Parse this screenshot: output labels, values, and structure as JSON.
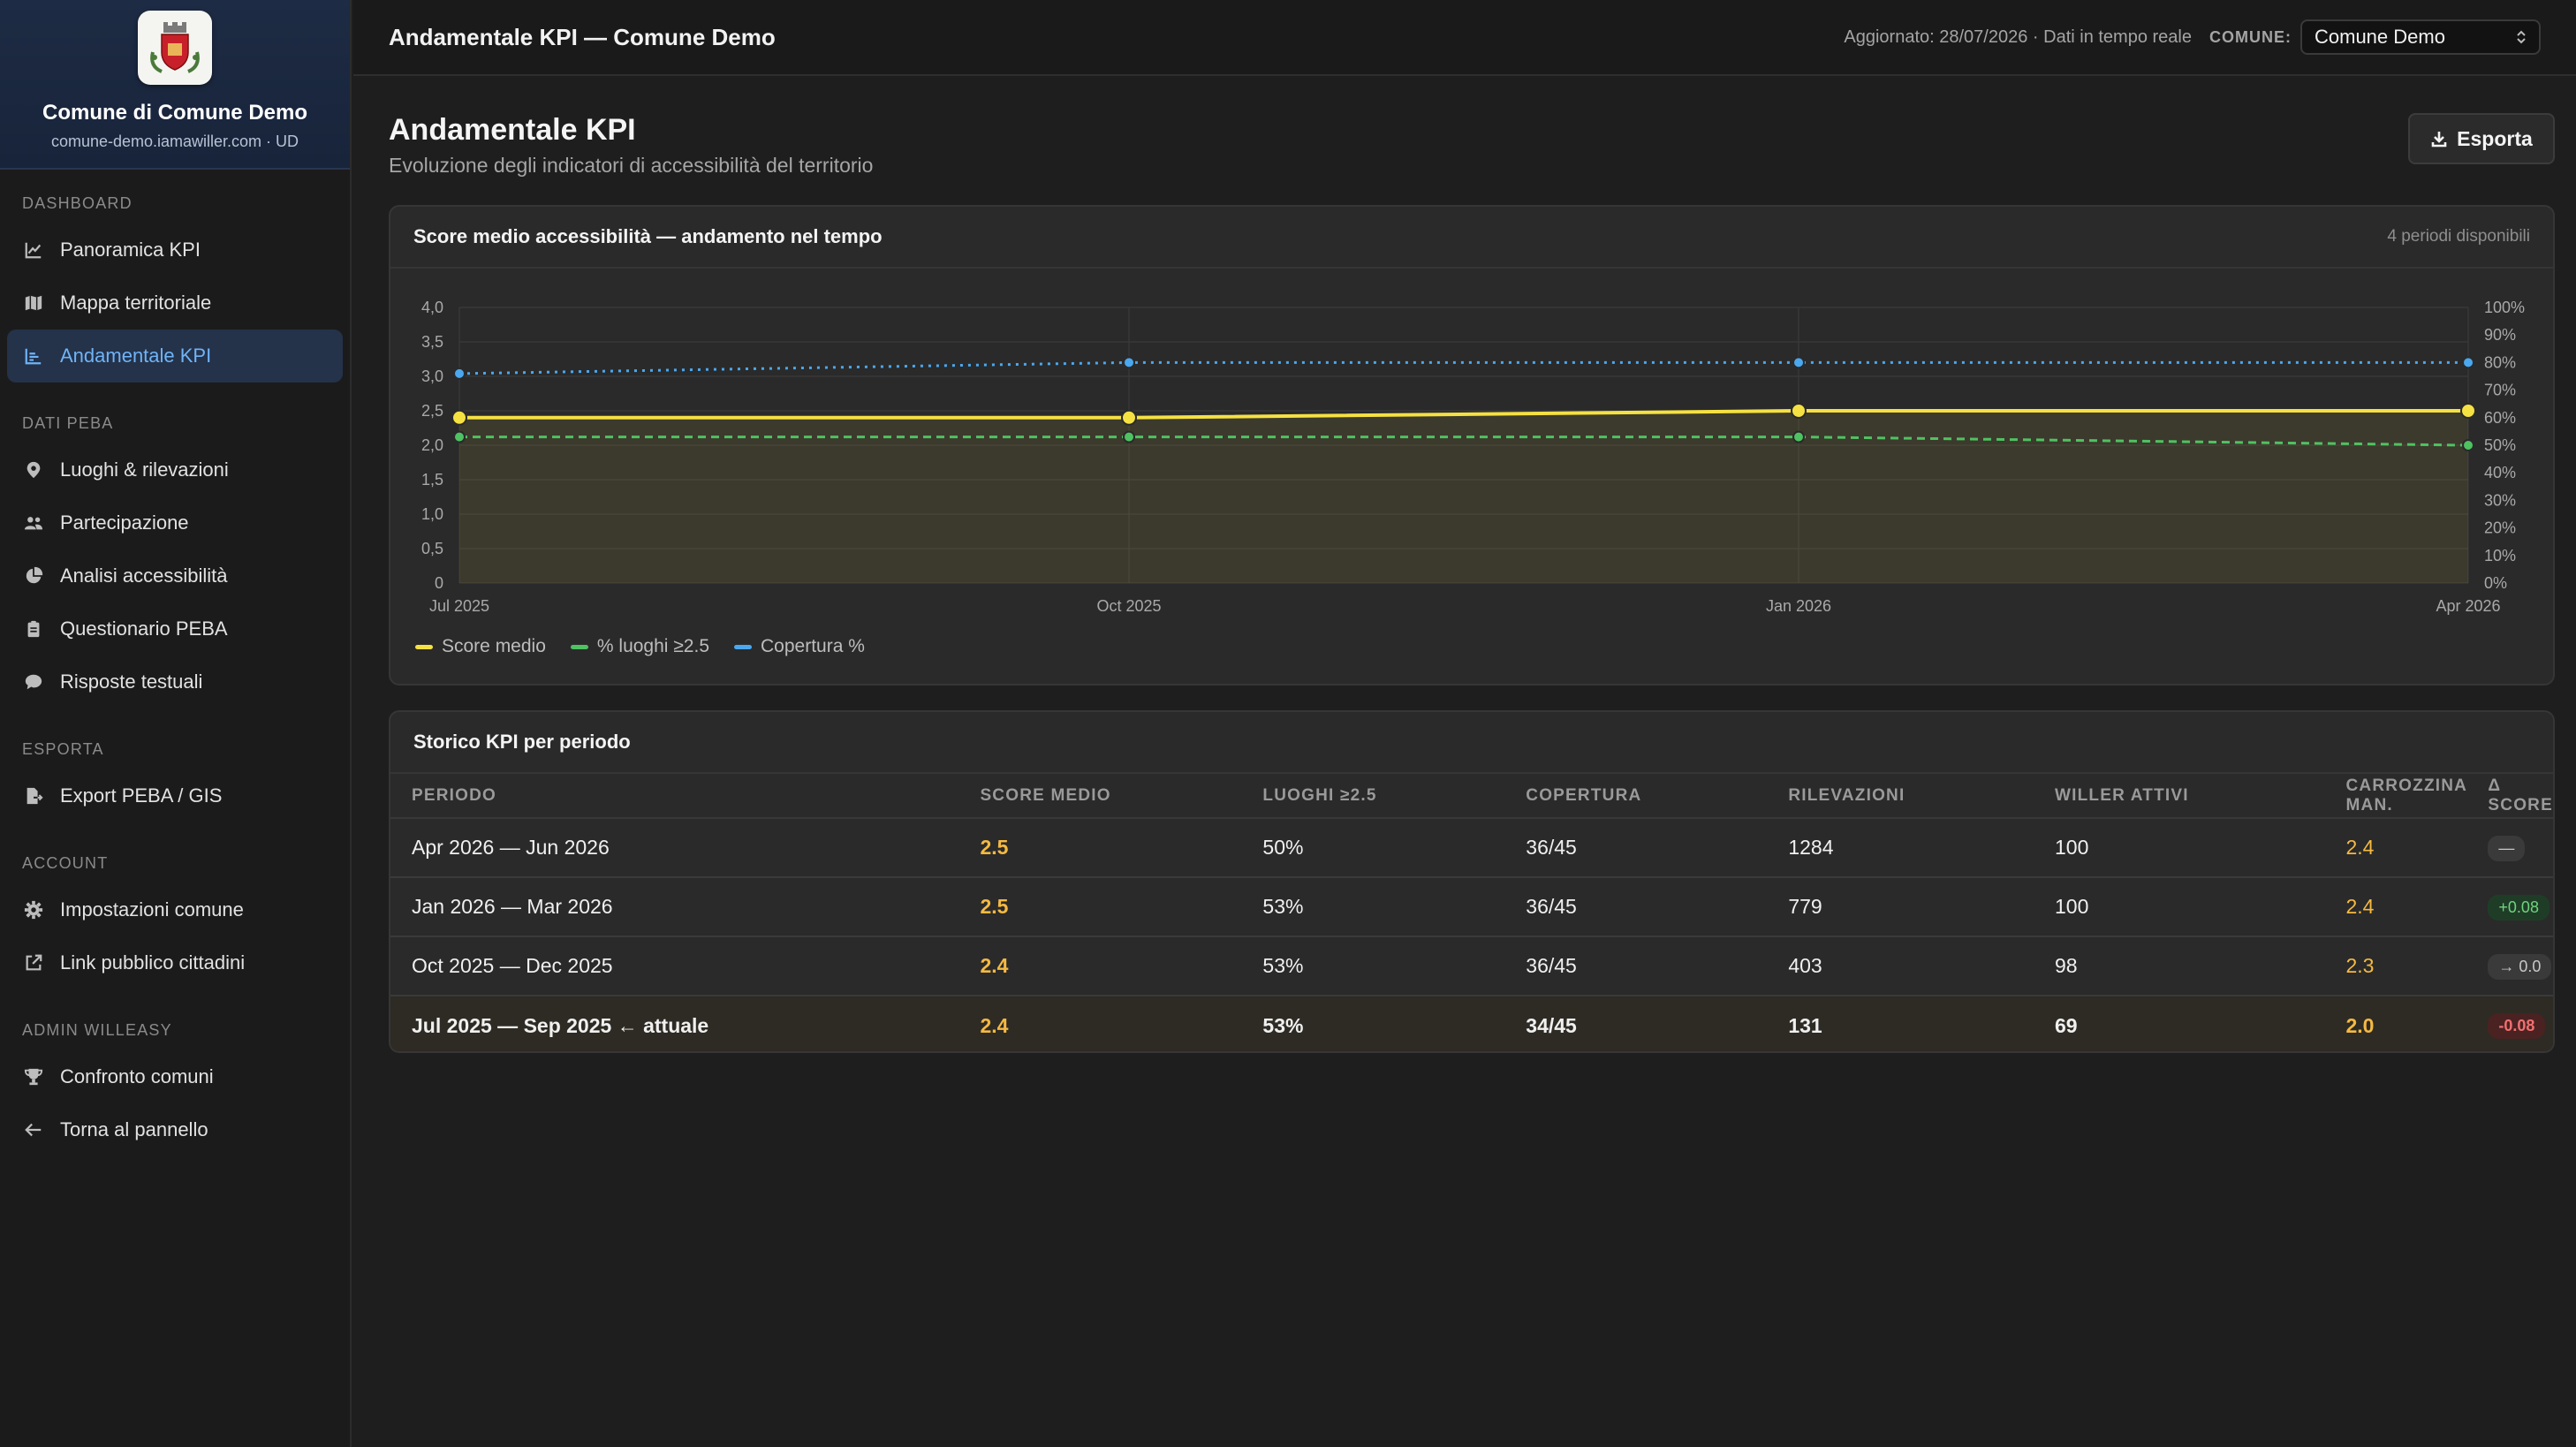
{
  "sidebar": {
    "brand_name": "Comune di Comune Demo",
    "brand_sub": "comune-demo.iamawiller.com · UD",
    "sections": [
      {
        "label": "DASHBOARD",
        "items": [
          {
            "label": "Panoramica KPI",
            "icon": "chart-line-icon",
            "active": false
          },
          {
            "label": "Mappa territoriale",
            "icon": "map-icon",
            "active": false
          },
          {
            "label": "Andamentale KPI",
            "icon": "trend-icon",
            "active": true
          }
        ]
      },
      {
        "label": "DATI PEBA",
        "items": [
          {
            "label": "Luoghi & rilevazioni",
            "icon": "map-pin-icon",
            "active": false
          },
          {
            "label": "Partecipazione",
            "icon": "users-icon",
            "active": false
          },
          {
            "label": "Analisi accessibilità",
            "icon": "pie-chart-icon",
            "active": false
          },
          {
            "label": "Questionario PEBA",
            "icon": "clipboard-icon",
            "active": false
          },
          {
            "label": "Risposte testuali",
            "icon": "comment-icon",
            "active": false
          }
        ]
      },
      {
        "label": "ESPORTA",
        "items": [
          {
            "label": "Export PEBA / GIS",
            "icon": "file-export-icon",
            "active": false
          }
        ]
      },
      {
        "label": "ACCOUNT",
        "items": [
          {
            "label": "Impostazioni comune",
            "icon": "gear-icon",
            "active": false
          },
          {
            "label": "Link pubblico cittadini",
            "icon": "external-link-icon",
            "active": false
          }
        ]
      },
      {
        "label": "ADMIN WILLEASY",
        "items": [
          {
            "label": "Confronto comuni",
            "icon": "trophy-icon",
            "active": false
          },
          {
            "label": "Torna al pannello",
            "icon": "arrow-left-icon",
            "active": false
          }
        ]
      }
    ]
  },
  "topbar": {
    "title": "Andamentale KPI — Comune Demo",
    "updated": "Aggiornato: 28/07/2026 · Dati in tempo reale",
    "comune_label": "COMUNE:",
    "comune_value": "Comune Demo"
  },
  "page": {
    "title": "Andamentale KPI",
    "subtitle": "Evoluzione degli indicatori di accessibilità del territorio",
    "export_label": "Esporta"
  },
  "chart_card": {
    "title": "Score medio accessibilità — andamento nel tempo",
    "meta": "4 periodi disponibili"
  },
  "chart_data": {
    "type": "line",
    "x": [
      "Jul 2025",
      "Oct 2025",
      "Jan 2026",
      "Apr 2026"
    ],
    "y_left": {
      "ticks": [
        "0",
        "0,5",
        "1,0",
        "1,5",
        "2,0",
        "2,5",
        "3,0",
        "3,5",
        "4,0"
      ],
      "range": [
        0,
        4
      ]
    },
    "y_right": {
      "ticks": [
        "0%",
        "10%",
        "20%",
        "30%",
        "40%",
        "50%",
        "60%",
        "70%",
        "80%",
        "90%",
        "100%"
      ],
      "range": [
        0,
        100
      ]
    },
    "grid": true,
    "legend_position": "bottom-left",
    "series": [
      {
        "name": "Score medio",
        "axis": "left",
        "style": "solid",
        "color": "#f5e142",
        "values": [
          2.4,
          2.4,
          2.5,
          2.5
        ],
        "area": true
      },
      {
        "name": "% luoghi ≥2.5",
        "axis": "right",
        "style": "dashed",
        "color": "#4fc262",
        "values": [
          53,
          53,
          53,
          50
        ]
      },
      {
        "name": "Copertura %",
        "axis": "right",
        "style": "dotted",
        "color": "#4aa8f0",
        "values": [
          76,
          80,
          80,
          80
        ]
      }
    ]
  },
  "table_card": {
    "title": "Storico KPI per periodo",
    "columns": [
      "PERIODO",
      "SCORE MEDIO",
      "LUOGHI ≥2.5",
      "COPERTURA",
      "RILEVAZIONI",
      "WILLER ATTIVI",
      "CARROZZINA MAN.",
      "Δ SCORE"
    ],
    "rows": [
      {
        "periodo": "Apr 2026 — Jun 2026",
        "score": "2.5",
        "luoghi": "50%",
        "copertura": "36/45",
        "rilevazioni": "1284",
        "willer": "100",
        "carrozzina": "2.4",
        "delta": "—",
        "delta_kind": "neutral"
      },
      {
        "periodo": "Jan 2026 — Mar 2026",
        "score": "2.5",
        "luoghi": "53%",
        "copertura": "36/45",
        "rilevazioni": "779",
        "willer": "100",
        "carrozzina": "2.4",
        "delta": "+0.08",
        "delta_kind": "up"
      },
      {
        "periodo": "Oct 2025 — Dec 2025",
        "score": "2.4",
        "luoghi": "53%",
        "copertura": "36/45",
        "rilevazioni": "403",
        "willer": "98",
        "carrozzina": "2.3",
        "delta": "→ 0.0",
        "delta_kind": "neutral"
      },
      {
        "periodo": "Jul 2025 — Sep 2025 ← attuale",
        "score": "2.4",
        "luoghi": "53%",
        "copertura": "34/45",
        "rilevazioni": "131",
        "willer": "69",
        "carrozzina": "2.0",
        "delta": "-0.08",
        "delta_kind": "down",
        "current": true
      }
    ]
  },
  "colors": {
    "accent": "#6fb4f7",
    "score": "#f5b942",
    "delta_up_bg": "#1f3d26",
    "delta_up_fg": "#6fd37f",
    "delta_down_bg": "#4a2222",
    "delta_down_fg": "#f07070",
    "delta_neutral_bg": "#3a3a3a",
    "delta_neutral_fg": "#c8c8c8"
  }
}
